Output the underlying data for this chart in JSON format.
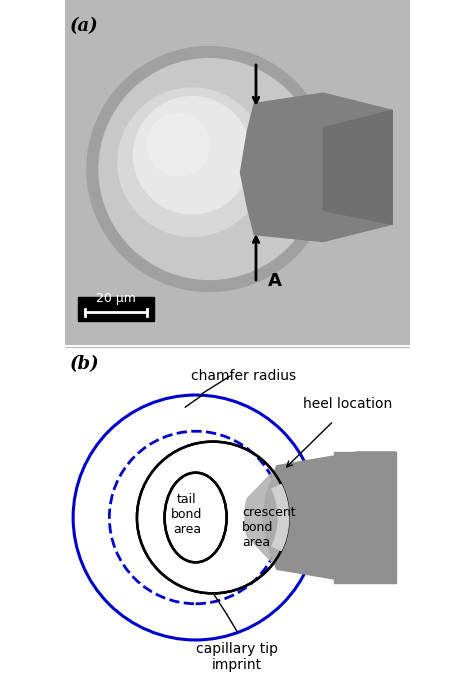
{
  "panel_a_label": "(a)",
  "panel_b_label": "(b)",
  "scale_bar_text": "20 μm",
  "label_A": "A",
  "label_chamfer": "chamfer radius",
  "label_heel": "heel location",
  "label_tail": "tail\nbond\narea",
  "label_crescent": "crescent\nbond\narea",
  "label_capillary": "capillary tip\nimprint",
  "bg_color_a": "#c8c8c8",
  "blue_color": "#0000cc",
  "black": "#000000",
  "gray_fill": "#aaaaaa",
  "light_gray": "#cccccc",
  "white": "#ffffff",
  "fig_bg": "#f0f0f0"
}
